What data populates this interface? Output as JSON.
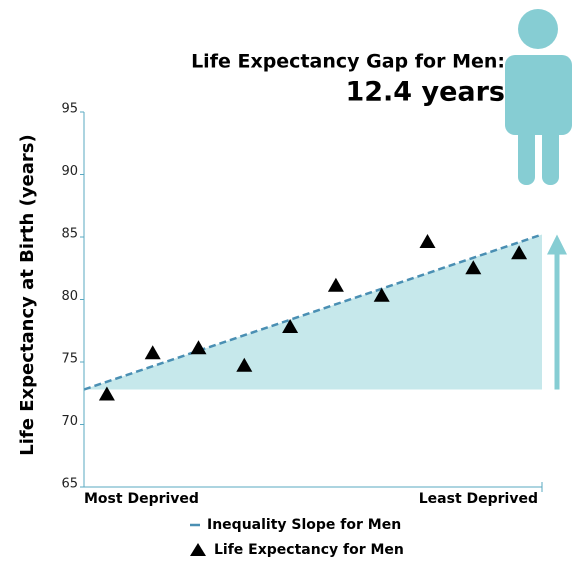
{
  "chart_data": {
    "type": "scatter",
    "title": "Life Expectancy Gap for Men:",
    "subtitle": "12.4 years",
    "ylabel": "Life Expectancy at Birth (years)",
    "x_start_label": "Most Deprived",
    "x_end_label": "Least Deprived",
    "categories": [
      null,
      null,
      null,
      null,
      null,
      null,
      null,
      null,
      null,
      null
    ],
    "series": [
      {
        "name": "Life Expectancy for Men",
        "color": "#000000",
        "marker": "triangle",
        "values": [
          72.4,
          75.7,
          76.1,
          74.7,
          77.8,
          81.1,
          80.3,
          84.6,
          82.5,
          83.7
        ]
      }
    ],
    "slope_line": {
      "name": "Inequality Slope for Men",
      "color": "#4a8fb3",
      "fill": "#c6e8eb",
      "values": [
        72.8,
        85.2
      ]
    },
    "ylim": [
      65,
      95
    ],
    "yticks": [
      65,
      70,
      75,
      80,
      85,
      90,
      95
    ],
    "accent_color": "#86cdd3"
  }
}
